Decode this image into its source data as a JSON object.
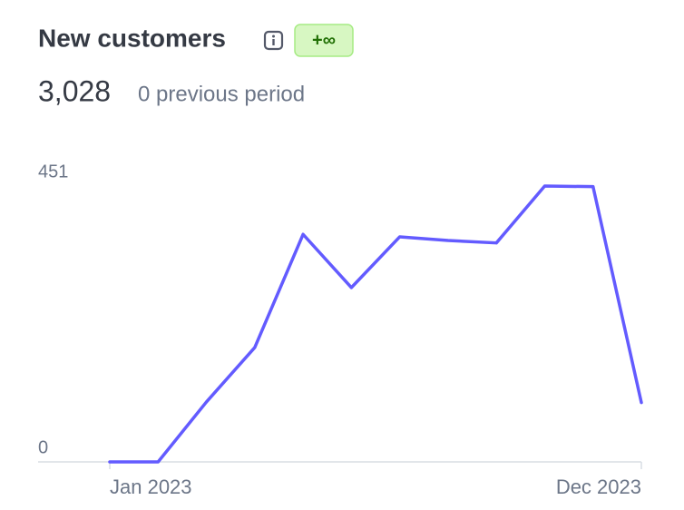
{
  "header": {
    "title": "New customers",
    "badge": "+∞",
    "value": "3,028",
    "comparison": "0 previous period"
  },
  "chart_data": {
    "type": "line",
    "categories": [
      "Jan 2023",
      null,
      null,
      null,
      null,
      null,
      null,
      null,
      null,
      null,
      null,
      "Dec 2023"
    ],
    "values": [
      0,
      0,
      98,
      187,
      372,
      285,
      368,
      362,
      358,
      451,
      450,
      97
    ],
    "color": "#635bff",
    "ylim": [
      0,
      451
    ],
    "yticks": [
      0,
      451
    ]
  }
}
